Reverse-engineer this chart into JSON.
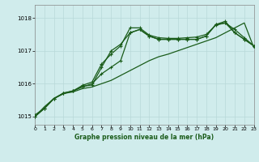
{
  "title": "Graphe pression niveau de la mer (hPa)",
  "background_color": "#d0ecec",
  "grid_color": "#b8d8d8",
  "line_color": "#1a5c1a",
  "xlim": [
    0,
    23
  ],
  "ylim": [
    1014.75,
    1018.4
  ],
  "yticks": [
    1015,
    1016,
    1017,
    1018
  ],
  "xticks": [
    0,
    1,
    2,
    3,
    4,
    5,
    6,
    7,
    8,
    9,
    10,
    11,
    12,
    13,
    14,
    15,
    16,
    17,
    18,
    19,
    20,
    21,
    22,
    23
  ],
  "series": [
    {
      "x": [
        0,
        1,
        2,
        3,
        4,
        5,
        6,
        7,
        8,
        9,
        10,
        11,
        12,
        13,
        14,
        15,
        16,
        17,
        18,
        19,
        20,
        21,
        22,
        23
      ],
      "y": [
        1015.0,
        1015.3,
        1015.55,
        1015.7,
        1015.75,
        1015.85,
        1015.9,
        1016.0,
        1016.1,
        1016.25,
        1016.4,
        1016.55,
        1016.7,
        1016.82,
        1016.9,
        1017.0,
        1017.1,
        1017.2,
        1017.3,
        1017.4,
        1017.55,
        1017.7,
        1017.85,
        1017.1
      ],
      "marker": null,
      "linewidth": 0.9
    },
    {
      "x": [
        0,
        1,
        2,
        3,
        4,
        5,
        6,
        7,
        8,
        9,
        10,
        11,
        12,
        13,
        14,
        15,
        16,
        17,
        18,
        19,
        20,
        21,
        22,
        23
      ],
      "y": [
        1015.0,
        1015.25,
        1015.55,
        1015.7,
        1015.78,
        1015.9,
        1016.0,
        1016.3,
        1016.5,
        1016.7,
        1017.55,
        1017.65,
        1017.45,
        1017.35,
        1017.35,
        1017.35,
        1017.35,
        1017.35,
        1017.45,
        1017.8,
        1017.85,
        1017.55,
        1017.35,
        1017.15
      ],
      "marker": "+",
      "linewidth": 0.9
    },
    {
      "x": [
        0,
        1,
        2,
        3,
        4,
        5,
        6,
        7,
        8,
        9,
        10,
        11,
        12,
        13,
        14,
        15,
        16,
        17,
        18,
        19,
        20,
        21,
        22,
        23
      ],
      "y": [
        1015.0,
        1015.25,
        1015.55,
        1015.72,
        1015.78,
        1015.95,
        1016.05,
        1016.6,
        1016.9,
        1017.15,
        1017.7,
        1017.7,
        1017.48,
        1017.4,
        1017.38,
        1017.38,
        1017.4,
        1017.42,
        1017.5,
        1017.78,
        1017.85,
        1017.65,
        1017.4,
        1017.15
      ],
      "marker": "+",
      "linewidth": 0.9
    },
    {
      "x": [
        0,
        1,
        2,
        3,
        4,
        5,
        6,
        7,
        8,
        9,
        10,
        11,
        12,
        13,
        14,
        15,
        16,
        17,
        18,
        19,
        20,
        21,
        22,
        23
      ],
      "y": [
        1015.05,
        1015.25,
        1015.55,
        1015.7,
        1015.78,
        1015.92,
        1015.96,
        1016.5,
        1017.0,
        1017.2,
        1017.55,
        1017.65,
        1017.45,
        1017.35,
        1017.35,
        1017.35,
        1017.35,
        1017.35,
        1017.45,
        1017.8,
        1017.9,
        1017.55,
        1017.35,
        1017.15
      ],
      "marker": "+",
      "linewidth": 0.9
    }
  ]
}
